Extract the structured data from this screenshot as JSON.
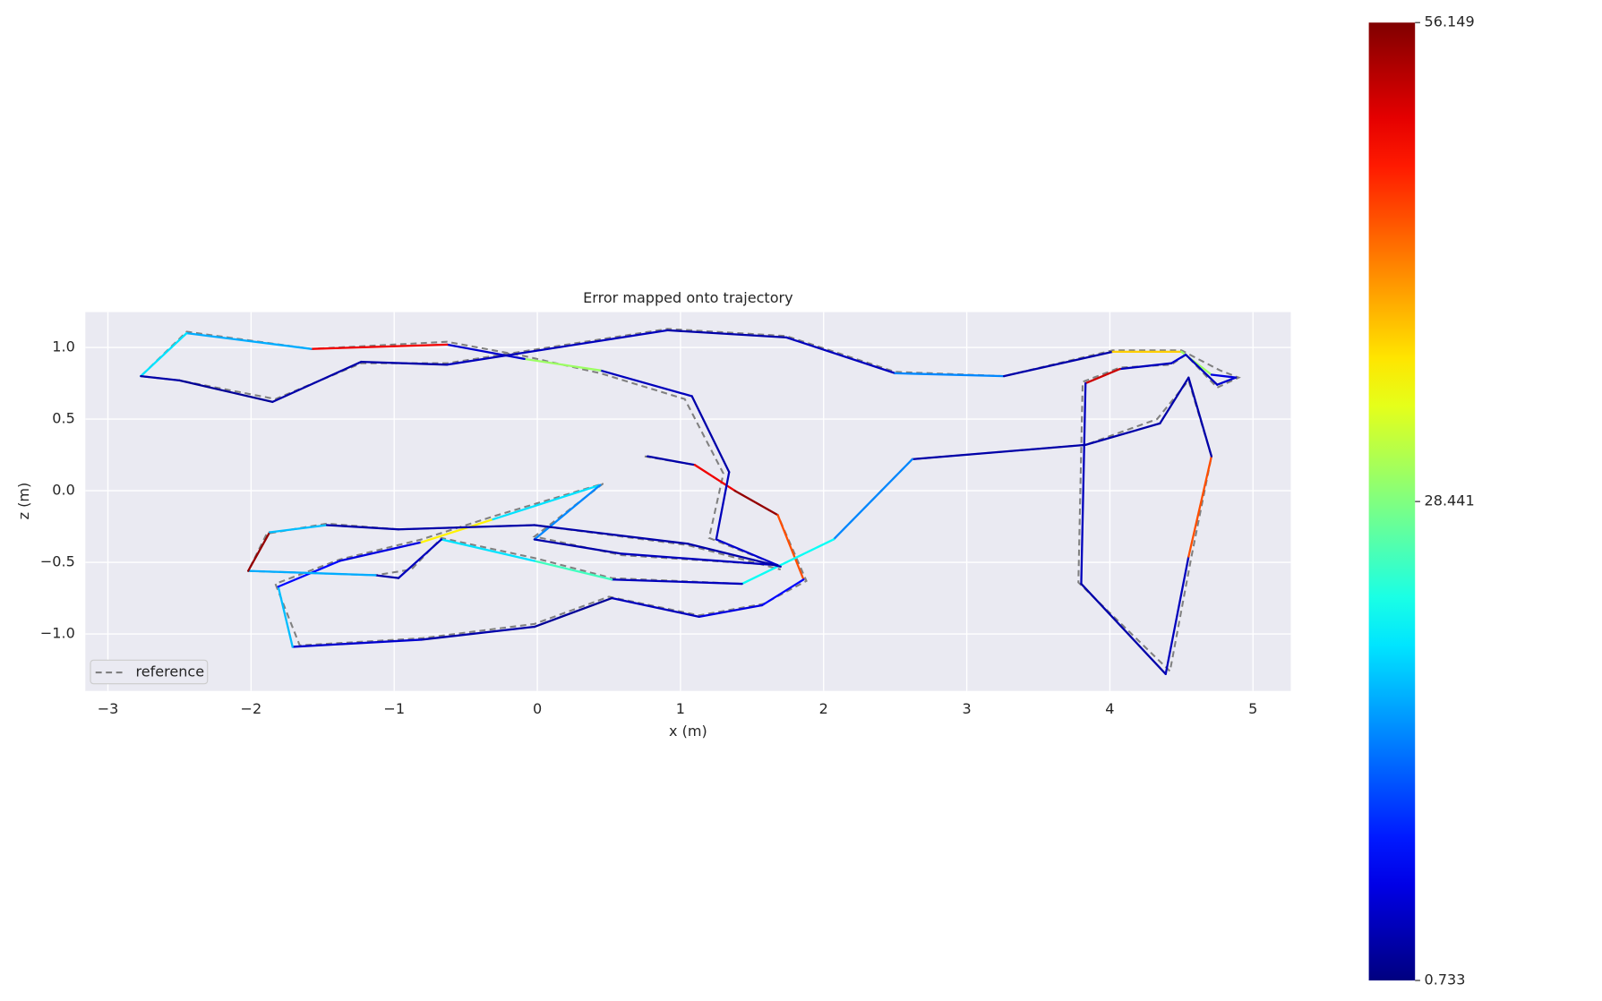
{
  "chart_data": {
    "type": "trajectory",
    "title": "Error mapped onto trajectory",
    "x_label": "x (m)",
    "y_label": "z (m)",
    "xlim": [
      -3.158,
      5.264
    ],
    "ylim": [
      -1.398,
      1.247
    ],
    "xticks": [
      {
        "value": -3,
        "label": "−3"
      },
      {
        "value": -2,
        "label": "−2"
      },
      {
        "value": -1,
        "label": "−1"
      },
      0,
      1,
      2,
      3,
      4,
      5
    ],
    "yticks": [
      {
        "value": -1,
        "label": "−1.0"
      },
      {
        "value": -0.5,
        "label": "−0.5"
      },
      {
        "value": 0,
        "label": "0.0"
      },
      {
        "value": 0.5,
        "label": "0.5"
      },
      {
        "value": 1,
        "label": "1.0"
      }
    ],
    "grid": true,
    "legend_loc": "lower left",
    "series": [
      {
        "name": "reference",
        "color": "#808080",
        "dash": true,
        "x": [
          0.75,
          1.1,
          1.38,
          1.68,
          1.88,
          1.58,
          1.13,
          0.5,
          -0.02,
          -0.81,
          -1.66,
          -1.83,
          -1.38,
          -0.81,
          -0.31,
          0.46,
          -0.02,
          0.59,
          1.68,
          1.2,
          1.3,
          1.03,
          0.44,
          -0.09,
          -0.63,
          -1.58,
          -2.45,
          -2.77,
          -2.5,
          -1.83,
          -1.23,
          -0.63,
          0.91,
          1.74,
          2.5,
          3.26,
          4.02,
          4.5,
          4.77,
          4.9,
          4.75,
          4.53,
          4.43,
          4.07,
          3.81,
          3.78,
          4.42,
          4.57,
          4.71,
          4.55,
          4.33,
          3.83,
          2.62,
          2.07,
          1.43,
          0.52,
          -0.02,
          -0.67,
          -0.88,
          -1.13,
          -2.02,
          -1.89,
          -1.47,
          -0.97,
          -0.02,
          1.05,
          1.7
        ],
        "y": [
          0.24,
          0.18,
          0.0,
          -0.17,
          -0.63,
          -0.79,
          -0.87,
          -0.74,
          -0.93,
          -1.03,
          -1.08,
          -0.65,
          -0.48,
          -0.34,
          -0.18,
          0.05,
          -0.32,
          -0.45,
          -0.52,
          -0.33,
          0.12,
          0.64,
          0.82,
          0.94,
          1.04,
          0.99,
          1.11,
          0.8,
          0.77,
          0.64,
          0.89,
          0.89,
          1.13,
          1.08,
          0.83,
          0.8,
          0.98,
          0.98,
          0.84,
          0.79,
          0.72,
          0.95,
          0.88,
          0.86,
          0.76,
          -0.64,
          -1.26,
          -0.46,
          0.24,
          0.77,
          0.5,
          0.32,
          0.22,
          -0.34,
          -0.65,
          -0.61,
          -0.47,
          -0.33,
          -0.55,
          -0.59,
          -0.56,
          -0.3,
          -0.23,
          -0.27,
          -0.24,
          -0.38,
          -0.55
        ]
      }
    ],
    "trajectory": {
      "x": [
        0.77,
        1.1,
        1.38,
        1.68,
        1.86,
        1.57,
        1.13,
        0.52,
        -0.02,
        -0.81,
        -1.71,
        -1.81,
        -1.38,
        -0.81,
        -0.31,
        0.44,
        -0.02,
        0.59,
        1.68,
        1.25,
        1.34,
        1.08,
        0.44,
        -0.09,
        -0.63,
        -1.58,
        -2.45,
        -2.77,
        -2.5,
        -1.85,
        -1.23,
        -0.63,
        0.91,
        1.74,
        2.5,
        3.26,
        4.02,
        4.5,
        4.71,
        4.88,
        4.75,
        4.53,
        4.43,
        4.07,
        3.83,
        3.8,
        4.39,
        4.55,
        4.71,
        4.55,
        4.35,
        3.83,
        2.62,
        2.07,
        1.43,
        0.52,
        -0.02,
        -0.67,
        -0.97,
        -1.13,
        -2.02,
        -1.87,
        -1.47,
        -0.97,
        -0.02,
        1.05,
        1.7
      ],
      "y": [
        0.24,
        0.18,
        0.0,
        -0.17,
        -0.62,
        -0.8,
        -0.88,
        -0.75,
        -0.95,
        -1.04,
        -1.09,
        -0.67,
        -0.49,
        -0.36,
        -0.2,
        0.04,
        -0.34,
        -0.44,
        -0.52,
        -0.34,
        0.13,
        0.66,
        0.84,
        0.92,
        1.02,
        0.99,
        1.1,
        0.8,
        0.77,
        0.62,
        0.9,
        0.88,
        1.12,
        1.07,
        0.82,
        0.8,
        0.97,
        0.97,
        0.81,
        0.79,
        0.74,
        0.95,
        0.89,
        0.85,
        0.75,
        -0.65,
        -1.28,
        -0.46,
        0.24,
        0.79,
        0.47,
        0.32,
        0.22,
        -0.34,
        -0.65,
        -0.62,
        -0.49,
        -0.34,
        -0.61,
        -0.59,
        -0.56,
        -0.29,
        -0.24,
        -0.27,
        -0.24,
        -0.37,
        -0.53
      ],
      "error": [
        3,
        50,
        55,
        45,
        8,
        6,
        4,
        2,
        3,
        5,
        18,
        8,
        6,
        36,
        20,
        15,
        3,
        4,
        5,
        4,
        3,
        4,
        30,
        5,
        50,
        17,
        20,
        3,
        2,
        3,
        3,
        4,
        3,
        4,
        15,
        3,
        38,
        30,
        6,
        5,
        4,
        5,
        4,
        52,
        4,
        3,
        4,
        45,
        3,
        3,
        3,
        3,
        15,
        22,
        4,
        25,
        20,
        4,
        3,
        17,
        55,
        18,
        3,
        3,
        3,
        3,
        3
      ]
    },
    "colorbar": {
      "min": 0.733,
      "max": 56.149,
      "ticks": [
        {
          "value": 0.733,
          "label": "0.733"
        },
        {
          "value": 28.441,
          "label": "28.441"
        },
        {
          "value": 56.149,
          "label": "56.149"
        }
      ]
    }
  }
}
